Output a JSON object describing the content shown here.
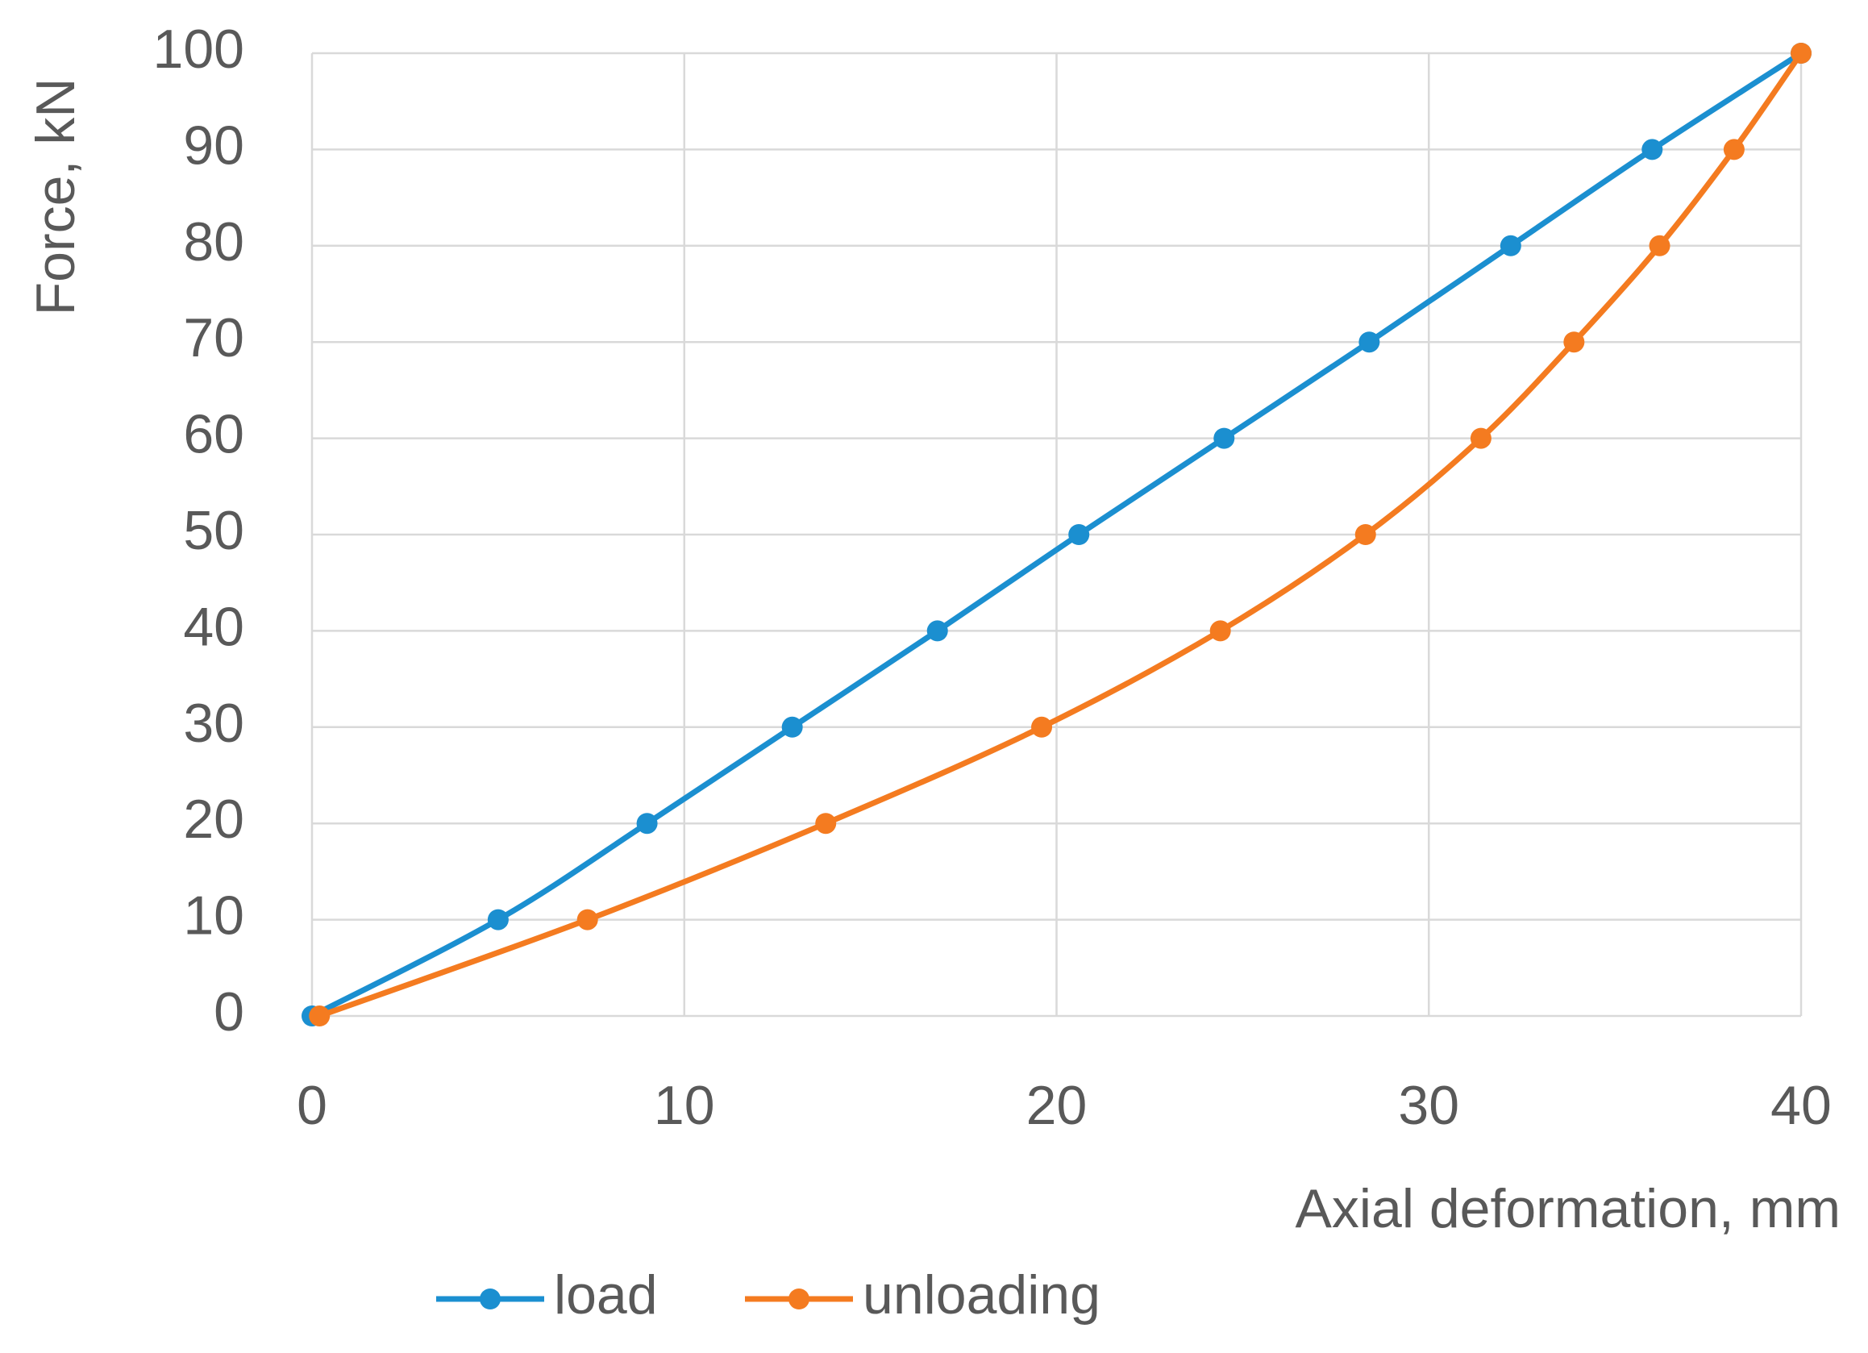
{
  "chart_data": {
    "type": "line",
    "x_label": "Axial deformation, mm",
    "y_label": "Force, kN",
    "series": [
      {
        "name": "load",
        "color": "#1b8fd0",
        "x": [
          0,
          5,
          9,
          12.9,
          16.8,
          20.6,
          24.5,
          28.4,
          32.2,
          36,
          40
        ],
        "values": [
          0,
          10,
          20,
          30,
          40,
          50,
          60,
          70,
          80,
          90,
          100
        ]
      },
      {
        "name": "unloading",
        "color": "#f47b20",
        "x": [
          0.2,
          7.4,
          13.8,
          19.6,
          24.4,
          28.3,
          31.4,
          33.9,
          36.2,
          38.2,
          40
        ],
        "values": [
          0,
          10,
          20,
          30,
          40,
          50,
          60,
          70,
          80,
          90,
          100
        ]
      }
    ],
    "xlim": [
      0,
      40
    ],
    "xticks": [
      0,
      10,
      20,
      30,
      40
    ],
    "ylim": [
      0,
      100
    ],
    "yticks": [
      0,
      10,
      20,
      30,
      40,
      50,
      60,
      70,
      80,
      90,
      100
    ],
    "grid": true,
    "legend": "bottom"
  }
}
